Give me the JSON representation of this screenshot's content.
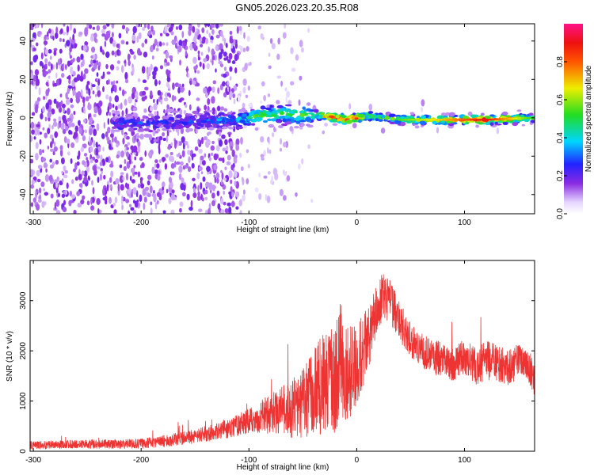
{
  "title": "GN05.2026.023.20.35.R08",
  "colors": {
    "snr_line": "#ee3333"
  },
  "chart_data": [
    {
      "type": "heatmap",
      "xlabel": "Height of straight line (km)",
      "ylabel": "Frequency (Hz)",
      "xlim": [
        -303,
        165
      ],
      "ylim": [
        -50,
        49
      ],
      "x_ticks": [
        -300,
        -200,
        -100,
        0,
        100
      ],
      "x_tick_labels": [
        "-300",
        "-200",
        "-100",
        "0",
        "100"
      ],
      "y_ticks": [
        -40,
        -20,
        0,
        20,
        40
      ],
      "y_tick_labels": [
        "-40",
        "-20",
        "0",
        "20",
        "40"
      ],
      "colorbar": {
        "label": "Normalized spectral amplitude",
        "range": [
          0,
          1
        ],
        "ticks": [
          0,
          0.2,
          0.4,
          0.6,
          0.8
        ],
        "tick_labels": [
          "0.0",
          "0.2",
          "0.4",
          "0.6",
          "0.8"
        ],
        "colormap": "rainbow (white-purple-blue-cyan-green-yellow-red-pink)"
      },
      "ridge": {
        "x": [
          -220,
          -150,
          -110,
          -90,
          -70,
          -50,
          -38,
          -30,
          -20,
          -10,
          0,
          10,
          40,
          80,
          120,
          165
        ],
        "y": [
          -3,
          -2,
          -1,
          1,
          2,
          1,
          2,
          1,
          0,
          -1,
          0,
          1,
          -1,
          -1,
          -1,
          0
        ],
        "amplitude": [
          0.25,
          0.25,
          0.35,
          0.55,
          0.5,
          0.6,
          0.45,
          0.75,
          0.9,
          0.85,
          0.9,
          0.5,
          0.55,
          0.7,
          0.9,
          0.5
        ]
      }
    },
    {
      "type": "line",
      "xlabel": "Height of straight line (km)",
      "ylabel": "SNR (10 * v/v)",
      "xlim": [
        -303,
        165
      ],
      "ylim": [
        0,
        3800
      ],
      "x_ticks": [
        -300,
        -200,
        -100,
        0,
        100
      ],
      "x_tick_labels": [
        "-300",
        "-200",
        "-100",
        "0",
        "100"
      ],
      "y_ticks": [
        0,
        1000,
        2000,
        3000
      ],
      "y_tick_labels": [
        "0",
        "1000",
        "2000",
        "3000"
      ],
      "series": [
        {
          "x": [
            -303,
            -280,
            -250,
            -200,
            -180,
            -150,
            -120,
            -100,
            -80,
            -60,
            -50,
            -40,
            -30,
            -20,
            -15,
            -10,
            0,
            10,
            20,
            25,
            30,
            40,
            50,
            60,
            70,
            80,
            90,
            100,
            110,
            120,
            130,
            140,
            150,
            160,
            165
          ],
          "mean": [
            120,
            130,
            140,
            150,
            200,
            300,
            450,
            600,
            750,
            850,
            950,
            1200,
            1350,
            1400,
            1800,
            1500,
            1700,
            2200,
            2900,
            3100,
            3000,
            2600,
            2200,
            2000,
            1900,
            1800,
            1750,
            1900,
            1700,
            1800,
            1750,
            1650,
            1800,
            1700,
            1400
          ],
          "spread": [
            80,
            80,
            90,
            100,
            120,
            150,
            200,
            250,
            400,
            600,
            700,
            900,
            1000,
            1100,
            1200,
            1000,
            800,
            700,
            500,
            450,
            450,
            400,
            350,
            350,
            350,
            350,
            350,
            350,
            400,
            400,
            400,
            350,
            350,
            350,
            300
          ]
        }
      ]
    }
  ]
}
